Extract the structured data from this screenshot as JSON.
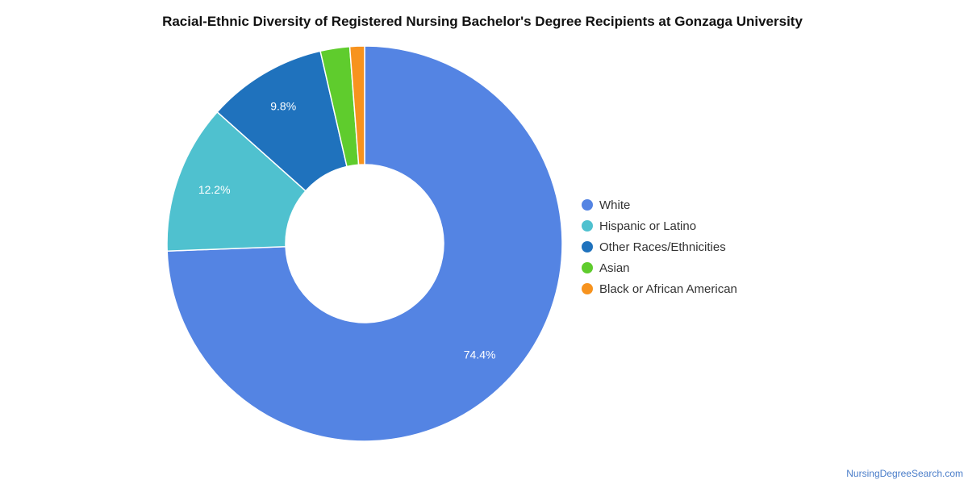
{
  "chart_data": {
    "type": "pie",
    "title": "Racial-Ethnic Diversity of Registered Nursing Bachelor's Degree Recipients at Gonzaga University",
    "categories": [
      "White",
      "Hispanic or Latino",
      "Other Races/Ethnicities",
      "Asian",
      "Black or African American"
    ],
    "values": [
      74.4,
      12.2,
      9.8,
      2.4,
      1.2
    ],
    "labels_shown": [
      "74.4%",
      "12.2%",
      "9.8%",
      "",
      ""
    ],
    "colors": [
      "#5484e3",
      "#4fc1cf",
      "#1f72bd",
      "#5fcc2d",
      "#f7931e"
    ],
    "donut": true,
    "legend_position": "right"
  },
  "credit": "NursingDegreeSearch.com"
}
